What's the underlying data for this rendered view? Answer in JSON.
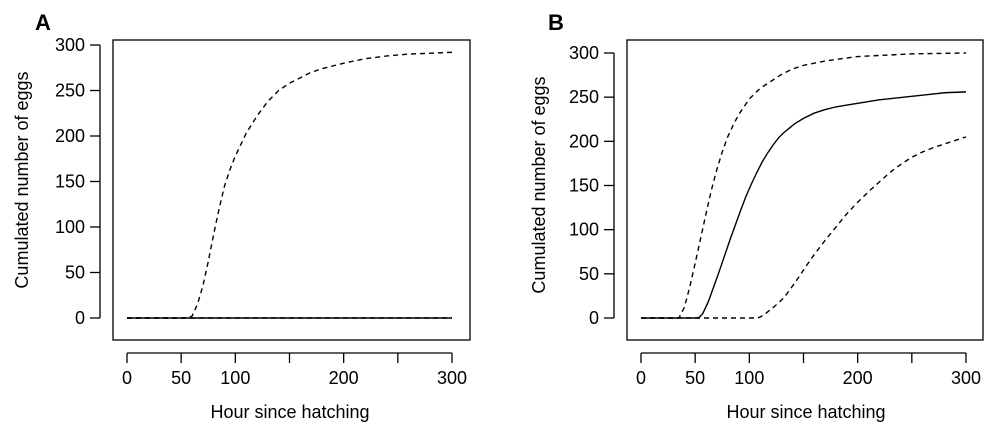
{
  "chart_data": [
    {
      "panel_label": "A",
      "type": "line",
      "xlabel": "Hour since hatching",
      "ylabel": "Cumulated number of eggs",
      "xlim": [
        0,
        300
      ],
      "ylim": [
        0,
        300
      ],
      "xticks": [
        0,
        50,
        100,
        150,
        200,
        250,
        300
      ],
      "xtick_labels": [
        "0",
        "50",
        "100",
        "",
        "200",
        "",
        "300"
      ],
      "yticks": [
        0,
        50,
        100,
        150,
        200,
        250,
        300
      ],
      "ytick_labels": [
        "0",
        "50",
        "100",
        "150",
        "200",
        "250",
        "300"
      ],
      "grid": false,
      "series": [
        {
          "style": "dashed",
          "points": [
            [
              0,
              0
            ],
            [
              55,
              0
            ],
            [
              60,
              2
            ],
            [
              65,
              15
            ],
            [
              70,
              35
            ],
            [
              75,
              62
            ],
            [
              80,
              92
            ],
            [
              85,
              120
            ],
            [
              90,
              145
            ],
            [
              95,
              163
            ],
            [
              100,
              178
            ],
            [
              110,
              203
            ],
            [
              120,
              222
            ],
            [
              130,
              238
            ],
            [
              140,
              250
            ],
            [
              150,
              258
            ],
            [
              160,
              264
            ],
            [
              170,
              270
            ],
            [
              180,
              274
            ],
            [
              200,
              280
            ],
            [
              220,
              285
            ],
            [
              240,
              288
            ],
            [
              260,
              290
            ],
            [
              280,
              291
            ],
            [
              300,
              292
            ]
          ]
        },
        {
          "style": "solid",
          "points": [
            [
              0,
              0
            ],
            [
              300,
              0
            ]
          ]
        },
        {
          "style": "dashed",
          "points": [
            [
              0,
              0
            ],
            [
              300,
              0
            ]
          ]
        }
      ]
    },
    {
      "panel_label": "B",
      "type": "line",
      "xlabel": "Hour since hatching",
      "ylabel": "Cumulated number of eggs",
      "xlim": [
        0,
        300
      ],
      "ylim": [
        0,
        300
      ],
      "xticks": [
        0,
        50,
        100,
        150,
        200,
        250,
        300
      ],
      "xtick_labels": [
        "0",
        "50",
        "100",
        "",
        "200",
        "",
        "300"
      ],
      "yticks": [
        0,
        50,
        100,
        150,
        200,
        250,
        300
      ],
      "ytick_labels": [
        "0",
        "50",
        "100",
        "150",
        "200",
        "250",
        "300"
      ],
      "grid": false,
      "series": [
        {
          "style": "dashed",
          "points": [
            [
              0,
              0
            ],
            [
              35,
              0
            ],
            [
              40,
              12
            ],
            [
              45,
              35
            ],
            [
              50,
              62
            ],
            [
              55,
              90
            ],
            [
              60,
              118
            ],
            [
              65,
              145
            ],
            [
              70,
              168
            ],
            [
              75,
              188
            ],
            [
              80,
              205
            ],
            [
              85,
              218
            ],
            [
              90,
              230
            ],
            [
              100,
              248
            ],
            [
              110,
              260
            ],
            [
              120,
              268
            ],
            [
              130,
              276
            ],
            [
              140,
              282
            ],
            [
              150,
              286
            ],
            [
              170,
              291
            ],
            [
              200,
              296
            ],
            [
              250,
              299
            ],
            [
              300,
              300
            ]
          ]
        },
        {
          "style": "solid",
          "points": [
            [
              0,
              0
            ],
            [
              53,
              0
            ],
            [
              57,
              5
            ],
            [
              62,
              18
            ],
            [
              67,
              35
            ],
            [
              72,
              52
            ],
            [
              77,
              70
            ],
            [
              82,
              88
            ],
            [
              87,
              105
            ],
            [
              92,
              122
            ],
            [
              97,
              138
            ],
            [
              102,
              152
            ],
            [
              107,
              165
            ],
            [
              112,
              177
            ],
            [
              117,
              187
            ],
            [
              122,
              196
            ],
            [
              127,
              204
            ],
            [
              132,
              210
            ],
            [
              137,
              215
            ],
            [
              142,
              220
            ],
            [
              150,
              226
            ],
            [
              160,
              232
            ],
            [
              170,
              236
            ],
            [
              180,
              239
            ],
            [
              190,
              241
            ],
            [
              200,
              243
            ],
            [
              210,
              245
            ],
            [
              220,
              247
            ],
            [
              235,
              249
            ],
            [
              250,
              251
            ],
            [
              265,
              253
            ],
            [
              280,
              255
            ],
            [
              300,
              256
            ]
          ]
        },
        {
          "style": "dashed",
          "points": [
            [
              0,
              0
            ],
            [
              108,
              0
            ],
            [
              113,
              3
            ],
            [
              118,
              8
            ],
            [
              125,
              15
            ],
            [
              132,
              23
            ],
            [
              138,
              33
            ],
            [
              145,
              45
            ],
            [
              152,
              58
            ],
            [
              160,
              72
            ],
            [
              170,
              88
            ],
            [
              180,
              103
            ],
            [
              190,
              118
            ],
            [
              200,
              131
            ],
            [
              210,
              143
            ],
            [
              220,
              154
            ],
            [
              230,
              165
            ],
            [
              240,
              174
            ],
            [
              250,
              182
            ],
            [
              260,
              188
            ],
            [
              270,
              193
            ],
            [
              280,
              197
            ],
            [
              290,
              201
            ],
            [
              300,
              205
            ]
          ]
        }
      ]
    }
  ]
}
